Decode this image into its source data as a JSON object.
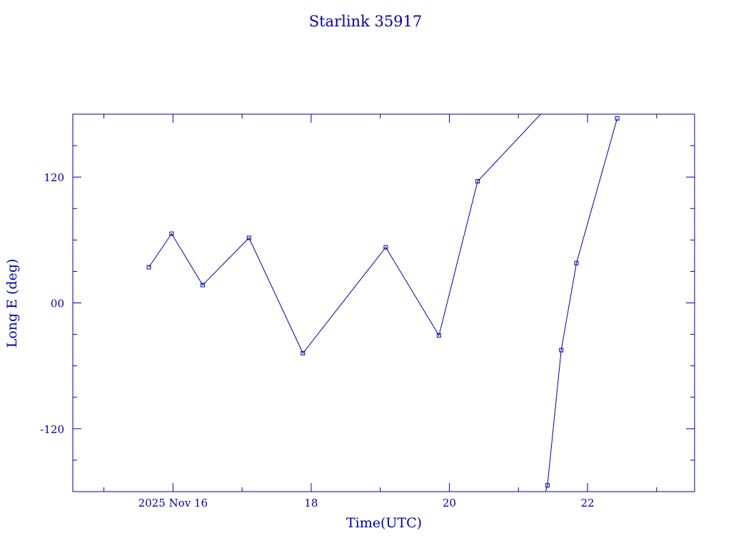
{
  "chart_data": {
    "type": "line",
    "title": "Starlink 35917",
    "xlabel": "Time(UTC)",
    "ylabel": "Long E (deg)",
    "x_unit": "hours UTC, 2025 Nov",
    "xlim": [
      14.55,
      23.55
    ],
    "ylim": [
      -180,
      180
    ],
    "xticks": [
      {
        "value": 16,
        "label": "2025 Nov 16"
      },
      {
        "value": 18,
        "label": "18"
      },
      {
        "value": 20,
        "label": "20"
      },
      {
        "value": 22,
        "label": "22"
      }
    ],
    "yticks": [
      {
        "value": 120,
        "label": "120"
      },
      {
        "value": 0,
        "label": "00"
      },
      {
        "value": -120,
        "label": "-120"
      }
    ],
    "color": "#0000aa",
    "series": [
      {
        "points": [
          [
            15.65,
            34
          ],
          [
            15.98,
            66
          ],
          [
            16.43,
            17
          ],
          [
            17.1,
            62
          ],
          [
            17.88,
            -48
          ],
          [
            19.08,
            53
          ],
          [
            19.85,
            -31
          ],
          [
            20.41,
            116
          ],
          [
            21.35,
            182
          ],
          [
            22.43,
            176
          ]
        ]
      }
    ],
    "segments": [
      [
        [
          15.65,
          34
        ],
        [
          15.98,
          66
        ],
        [
          16.43,
          17
        ],
        [
          17.1,
          62
        ],
        [
          17.88,
          -48
        ],
        [
          19.08,
          53
        ],
        [
          19.85,
          -31
        ],
        [
          20.41,
          116
        ],
        [
          21.35,
          182
        ]
      ],
      [
        [
          21.35,
          -189
        ],
        [
          21.42,
          -174
        ],
        [
          21.62,
          -45
        ],
        [
          21.84,
          38
        ],
        [
          22.43,
          176
        ]
      ]
    ],
    "markers": [
      [
        15.65,
        34
      ],
      [
        15.98,
        66
      ],
      [
        16.43,
        17
      ],
      [
        17.1,
        62
      ],
      [
        17.88,
        -48
      ],
      [
        19.08,
        53
      ],
      [
        19.85,
        -31
      ],
      [
        20.41,
        116
      ],
      [
        21.42,
        -174
      ],
      [
        21.62,
        -45
      ],
      [
        21.84,
        38
      ],
      [
        22.43,
        176
      ]
    ]
  }
}
